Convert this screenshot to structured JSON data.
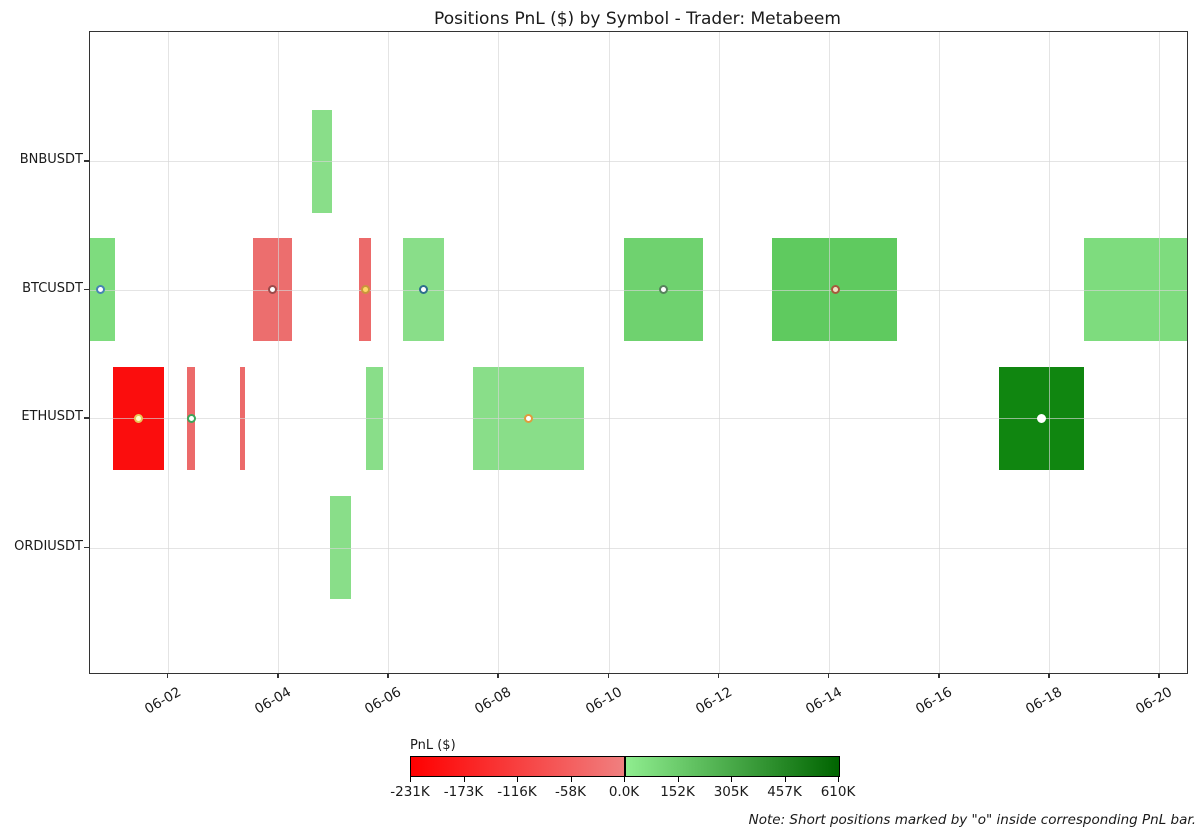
{
  "title": "Positions PnL ($) by Symbol - Trader: Metabeem",
  "note": "Note: Short positions marked by \"o\" inside corresponding PnL bar.",
  "colorbar": {
    "label": "PnL ($)",
    "tick_labels": [
      "-231K",
      "-173K",
      "-116K",
      "-58K",
      "0.0K",
      "152K",
      "305K",
      "457K",
      "610K"
    ],
    "negative_gradient": [
      "#ff0000",
      "#f08080"
    ],
    "positive_gradient": [
      "#90ee90",
      "#006400"
    ],
    "value_range_k": [
      -231,
      610
    ]
  },
  "chart_data": {
    "type": "bar",
    "subtype": "horizontal-timeline-broken-barh",
    "title": "Positions PnL ($) by Symbol - Trader: Metabeem",
    "xlabel": "",
    "ylabel": "",
    "grid": true,
    "legend_position": "bottom-colorbar",
    "x_axis": {
      "tick_labels": [
        "06-02",
        "06-04",
        "06-06",
        "06-08",
        "06-10",
        "06-12",
        "06-14",
        "06-16",
        "06-18",
        "06-20"
      ],
      "tick_days": [
        2,
        4,
        6,
        8,
        10,
        12,
        14,
        16,
        18,
        20
      ],
      "range_days": [
        0.584,
        20.5
      ],
      "month": "06"
    },
    "y_axis": {
      "categories": [
        "BNBUSDT",
        "BTCUSDT",
        "ETHUSDT",
        "ORDIUSDT"
      ]
    },
    "positions": [
      {
        "symbol": "BNBUSDT",
        "start_day": 4.61,
        "end_day": 4.98,
        "pnl_k_est": 25,
        "short": false,
        "bar_color": "#89de89"
      },
      {
        "symbol": "BTCUSDT",
        "start_day": 0.584,
        "end_day": 1.04,
        "pnl_k_est": 70,
        "short": true,
        "bar_color": "#7edc7e",
        "marker_day": 0.77,
        "marker_fill": "#ffffff",
        "marker_edge": "#4682b4"
      },
      {
        "symbol": "BTCUSDT",
        "start_day": 3.54,
        "end_day": 4.25,
        "pnl_k_est": -35,
        "short": true,
        "bar_color": "#ec6e6e",
        "marker_day": 3.9,
        "marker_fill": "#ffffff",
        "marker_edge": "#9a4a4a"
      },
      {
        "symbol": "BTCUSDT",
        "start_day": 5.47,
        "end_day": 5.69,
        "pnl_k_est": -30,
        "short": true,
        "bar_color": "#ec6a6a",
        "marker_day": 5.58,
        "marker_fill": "#ffd966",
        "marker_edge": "#c8963c"
      },
      {
        "symbol": "BTCUSDT",
        "start_day": 6.27,
        "end_day": 7.01,
        "pnl_k_est": 25,
        "short": true,
        "bar_color": "#89de89",
        "marker_day": 6.64,
        "marker_fill": "#ffffff",
        "marker_edge": "#2d6e8d"
      },
      {
        "symbol": "BTCUSDT",
        "start_day": 10.28,
        "end_day": 11.72,
        "pnl_k_est": 140,
        "short": true,
        "bar_color": "#6fd26f",
        "marker_day": 11.0,
        "marker_fill": "#ffffff",
        "marker_edge": "#56825c"
      },
      {
        "symbol": "BTCUSDT",
        "start_day": 12.97,
        "end_day": 15.24,
        "pnl_k_est": 210,
        "short": true,
        "bar_color": "#5fca5f",
        "marker_day": 14.12,
        "marker_fill": "#f3e3c6",
        "marker_edge": "#a65a3c"
      },
      {
        "symbol": "BTCUSDT",
        "start_day": 18.63,
        "end_day": 20.5,
        "pnl_k_est": 70,
        "short": false,
        "bar_color": "#7edc7e"
      },
      {
        "symbol": "ETHUSDT",
        "start_day": 1.0,
        "end_day": 1.93,
        "pnl_k_est": -230,
        "short": true,
        "bar_color": "#fb0d0d",
        "marker_day": 1.46,
        "marker_fill": "#ffffd0",
        "marker_edge": "#e8c95a"
      },
      {
        "symbol": "ETHUSDT",
        "start_day": 2.35,
        "end_day": 2.49,
        "pnl_k_est": -30,
        "short": true,
        "bar_color": "#ec6a6a",
        "marker_day": 2.42,
        "marker_fill": "#ffffff",
        "marker_edge": "#3aa65a"
      },
      {
        "symbol": "ETHUSDT",
        "start_day": 3.31,
        "end_day": 3.4,
        "pnl_k_est": -30,
        "short": false,
        "bar_color": "#ec6a6a"
      },
      {
        "symbol": "ETHUSDT",
        "start_day": 5.6,
        "end_day": 5.9,
        "pnl_k_est": 25,
        "short": false,
        "bar_color": "#89de89"
      },
      {
        "symbol": "ETHUSDT",
        "start_day": 7.54,
        "end_day": 9.55,
        "pnl_k_est": 25,
        "short": true,
        "bar_color": "#89de89",
        "marker_day": 8.55,
        "marker_fill": "#ffffff",
        "marker_edge": "#e09b3d"
      },
      {
        "symbol": "ETHUSDT",
        "start_day": 17.09,
        "end_day": 18.63,
        "pnl_k_est": 535,
        "short": true,
        "bar_color": "#108610",
        "marker_day": 17.86,
        "marker_fill": "#ffffff",
        "marker_edge": "#ffffff"
      },
      {
        "symbol": "ORDIUSDT",
        "start_day": 4.94,
        "end_day": 5.32,
        "pnl_k_est": 25,
        "short": false,
        "bar_color": "#89de89"
      }
    ]
  }
}
